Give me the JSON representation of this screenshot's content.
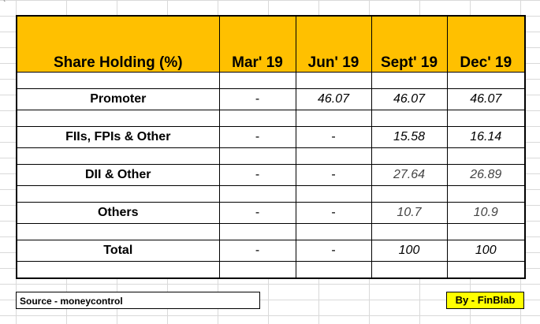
{
  "sheet": {
    "corner_mark": "`",
    "table": {
      "headers": [
        "Share Holding (%)",
        "Mar' 19",
        "Jun' 19",
        "Sept' 19",
        "Dec' 19"
      ],
      "rows": [
        {
          "label": "Promoter",
          "values": [
            "-",
            "46.07",
            "46.07",
            "46.07"
          ]
        },
        {
          "label": "FIIs, FPIs & Other",
          "values": [
            "-",
            "-",
            "15.58",
            "16.14"
          ]
        },
        {
          "label": "DII & Other",
          "values": [
            "-",
            "-",
            "27.64",
            "26.89"
          ]
        },
        {
          "label": "Others",
          "values": [
            "-",
            "-",
            "10.7",
            "10.9"
          ]
        },
        {
          "label": "Total",
          "values": [
            "-",
            "-",
            "100",
            "100"
          ]
        }
      ]
    },
    "footer": {
      "source": "Source - moneycontrol",
      "byline": "By - FinBlab"
    },
    "colors": {
      "header_bg": "#ffc000",
      "byline_bg": "#ffff00",
      "gridline": "#d9d9d9"
    }
  }
}
